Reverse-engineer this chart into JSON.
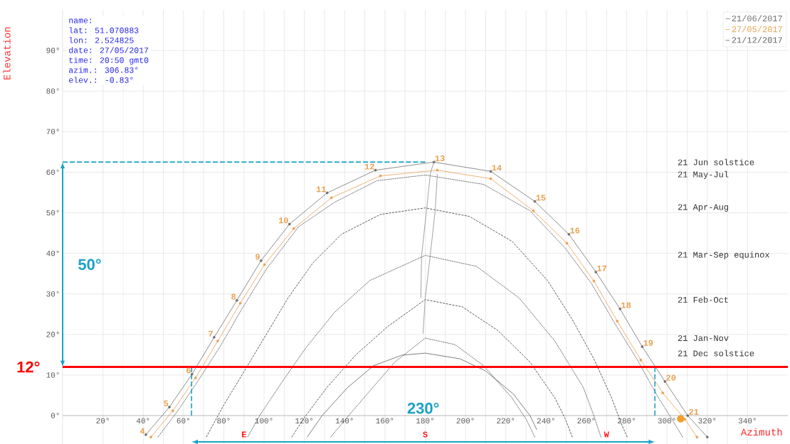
{
  "chart_data": {
    "type": "line",
    "xlabel": "Azimuth",
    "ylabel": "Elevation",
    "xlim": [
      0,
      360
    ],
    "ylim": [
      -7,
      100
    ],
    "xticks": [
      {
        "value": 20,
        "label": "20°"
      },
      {
        "value": 40,
        "label": "40°"
      },
      {
        "value": 60,
        "label": "60°"
      },
      {
        "value": 80,
        "label": "80°"
      },
      {
        "value": 100,
        "label": "100°"
      },
      {
        "value": 120,
        "label": "120°"
      },
      {
        "value": 140,
        "label": "140°"
      },
      {
        "value": 160,
        "label": "160°"
      },
      {
        "value": 180,
        "label": "180°"
      },
      {
        "value": 200,
        "label": "200°"
      },
      {
        "value": 220,
        "label": "220°"
      },
      {
        "value": 240,
        "label": "240°"
      },
      {
        "value": 260,
        "label": "260°"
      },
      {
        "value": 280,
        "label": "280°"
      },
      {
        "value": 300,
        "label": "300°"
      },
      {
        "value": 320,
        "label": "320°"
      },
      {
        "value": 340,
        "label": "340°"
      }
    ],
    "yticks": [
      {
        "value": 0,
        "label": "0°"
      },
      {
        "value": 10,
        "label": "10°"
      },
      {
        "value": 20,
        "label": "20°"
      },
      {
        "value": 30,
        "label": "30°"
      },
      {
        "value": 40,
        "label": "40°"
      },
      {
        "value": 50,
        "label": "50°"
      },
      {
        "value": 60,
        "label": "60°"
      },
      {
        "value": 70,
        "label": "70°"
      },
      {
        "value": 80,
        "label": "80°"
      },
      {
        "value": 90,
        "label": "90°"
      }
    ],
    "grid": true,
    "legend": "top right",
    "ref_lines": [
      {
        "axis": "y",
        "value": 12,
        "label": "12°",
        "color": "#ff0000"
      }
    ],
    "series": [
      {
        "name": "21/06/2017",
        "color": "#707070",
        "marker": "circle",
        "x": [
          41.3,
          53,
          64.2,
          75.2,
          86.5,
          98.5,
          112.6,
          131.3,
          155.3,
          184.3,
          212.5,
          234.4,
          251.3,
          264.7,
          276.7,
          287.7,
          299,
          310.3,
          320
        ],
        "values": [
          -4.7,
          2.1,
          10.2,
          19.3,
          28.4,
          38.2,
          47.2,
          54.9,
          60.5,
          62.5,
          60.2,
          52.8,
          44.7,
          35.4,
          26.3,
          17,
          8.4,
          0,
          -5.3
        ]
      },
      {
        "name": "27/05/2017",
        "color": "#e8a050",
        "marker": "circle",
        "x": [
          43.8,
          54.7,
          66,
          77,
          88.2,
          100.2,
          114.7,
          133.4,
          157.8,
          186,
          212.5,
          233.7,
          250.3,
          263.7,
          275.3,
          287,
          297.9,
          308.9,
          314.9
        ],
        "values": [
          -5.3,
          1.2,
          9.3,
          18.4,
          27.7,
          37.2,
          46.1,
          53.7,
          59.1,
          60.5,
          58.4,
          50.5,
          42.5,
          33.2,
          23.3,
          13.7,
          5.6,
          -0.9,
          -5.3
        ]
      },
      {
        "name": "21/12/2017",
        "color": "#606060",
        "x": [
          121.4,
          128.8,
          141.2,
          154.3,
          168.4,
          180,
          197.3,
          210,
          223.8,
          232,
          235.4
        ],
        "values": [
          -5.3,
          0,
          6.8,
          12.3,
          14.9,
          15.4,
          14,
          11,
          5.3,
          0,
          -3.5
        ]
      },
      {
        "color": "#303030",
        "line_style": "dotted",
        "x": [
          47.3,
          57.2,
          67,
          78.4,
          89,
          101,
          117,
          135,
          156,
          180,
          209,
          232,
          249.6,
          262.6,
          274,
          285,
          295.4,
          302.5,
          307.8
        ],
        "values": [
          -5.3,
          1.2,
          8.4,
          17.2,
          26.3,
          36,
          46.5,
          52.6,
          57.9,
          59.3,
          57,
          50.5,
          41.2,
          32.5,
          22.8,
          14,
          4.7,
          -0.9,
          -5.3
        ]
      },
      {
        "color": "#303030",
        "line_style": "dashed",
        "x": [
          71.3,
          80,
          90.7,
          101.3,
          111.9,
          124.3,
          138.4,
          157.8,
          180,
          201.9,
          223,
          240.7,
          253,
          263.7,
          272.5,
          277.8,
          280.3
        ],
        "values": [
          -5.3,
          2.6,
          11.4,
          20.2,
          29,
          37.7,
          44.7,
          49.6,
          51.2,
          49.1,
          43,
          33.3,
          23.7,
          14,
          4.4,
          -2.6,
          -5.3
        ]
      },
      {
        "color": "#303030",
        "line_style": "dotted",
        "x": [
          91.8,
          97.8,
          108.4,
          120.7,
          134.9,
          152.5,
          180,
          205.4,
          226.6,
          244.3,
          258.4,
          263.7,
          267.2
        ],
        "values": [
          -5.3,
          0,
          7.9,
          16.7,
          25.4,
          33.3,
          39.5,
          36.8,
          29,
          18.4,
          7,
          0,
          -5.3
        ]
      },
      {
        "color": "#303030",
        "line_style": "dashed",
        "x": [
          113.7,
          120.7,
          131.3,
          145.4,
          161.2,
          180,
          198.4,
          216,
          232,
          244.3,
          249.6,
          253
        ],
        "values": [
          -5.3,
          0,
          7,
          14.9,
          21.9,
          28.6,
          26.8,
          21,
          13.2,
          4.4,
          -0.9,
          -5.3
        ]
      },
      {
        "color": "#303030",
        "line_style": "dotted",
        "x": [
          133,
          142,
          152.5,
          164.9,
          180,
          194.8,
          209,
          223,
          230.1,
          234.4
        ],
        "values": [
          -5.3,
          0,
          6.1,
          13.2,
          19.1,
          17.5,
          12.3,
          4.4,
          -0.9,
          -5.3
        ]
      },
      {
        "color": "#8c8c8c",
        "x": [
          177.8,
          178.2,
          180.7,
          182.5,
          184.3
        ],
        "values": [
          29,
          39.5,
          50.9,
          59.6,
          62.5
        ]
      },
      {
        "color": "#1ba3c6",
        "line_style": "dashed",
        "x": [
          0,
          180
        ],
        "values": [
          62.5,
          62.5
        ]
      },
      {
        "color": "#1ba3c6",
        "line_style": "dashed",
        "x": [
          64,
          64
        ],
        "values": [
          0,
          12
        ]
      },
      {
        "color": "#1ba3c6",
        "line_style": "dashed",
        "x": [
          294,
          294
        ],
        "values": [
          0,
          12
        ]
      },
      {
        "color": "#8c8c8c",
        "x": [
          178.9,
          180,
          182.5,
          185,
          186
        ],
        "values": [
          20.2,
          29,
          39.5,
          50.9,
          59.6
        ]
      },
      {
        "type": "scatter",
        "color": "#f0a030",
        "marker": "circle",
        "x": [
          306.8
        ],
        "values": [
          -0.8
        ]
      }
    ],
    "annotations": [
      "name:",
      "lat: 51.070883",
      "lon: 2.524825",
      "date: 27/05/2017",
      "time: 20:50 gmt0",
      "azim.: 306.83°",
      "elev.: -0.83°",
      {
        "text": "4",
        "x": 41.3,
        "y": -4.7
      },
      {
        "text": "5",
        "x": 53,
        "y": 2.1
      },
      {
        "text": "6",
        "x": 64.2,
        "y": 10.2
      },
      {
        "text": "7",
        "x": 75.2,
        "y": 19.3
      },
      {
        "text": "8",
        "x": 86.5,
        "y": 28.4
      },
      {
        "text": "9",
        "x": 98.5,
        "y": 38.2
      },
      {
        "text": "10",
        "x": 112.6,
        "y": 47.2
      },
      {
        "text": "11",
        "x": 131.3,
        "y": 54.9
      },
      {
        "text": "12",
        "x": 155.3,
        "y": 60.5
      },
      {
        "text": "13",
        "x": 184.3,
        "y": 62.5
      },
      {
        "text": "14",
        "x": 212.5,
        "y": 60.2
      },
      {
        "text": "15",
        "x": 234.4,
        "y": 52.8
      },
      {
        "text": "16",
        "x": 251.3,
        "y": 44.7
      },
      {
        "text": "17",
        "x": 264.7,
        "y": 35.4
      },
      {
        "text": "18",
        "x": 276.7,
        "y": 26.3
      },
      {
        "text": "19",
        "x": 287.7,
        "y": 17
      },
      {
        "text": "20",
        "x": 299,
        "y": 8.4
      },
      {
        "text": "21",
        "x": 310.3,
        "y": 0
      },
      "21 Jun solstice",
      "21 May-Jul",
      "21 Apr-Aug",
      "21 Mar-Sep equinox",
      "21 Feb-Oct",
      "21 Jan-Nov",
      "21 Dec solstice",
      "E",
      "S",
      "W",
      "50°",
      "230°"
    ]
  }
}
